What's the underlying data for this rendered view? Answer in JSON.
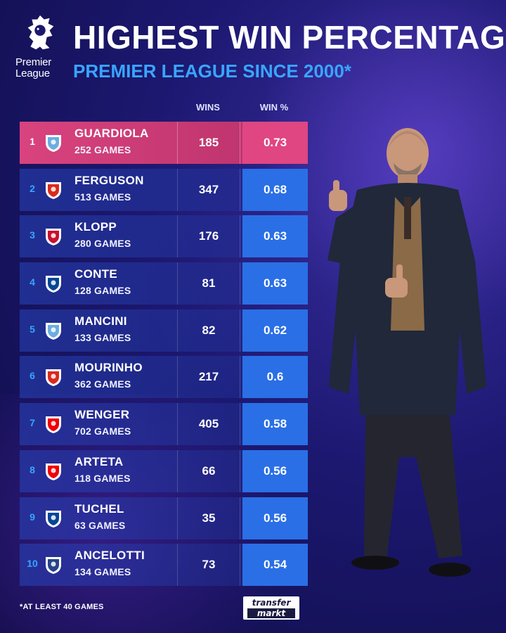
{
  "header": {
    "logo_text_line1": "Premier",
    "logo_text_line2": "League",
    "title": "HIGHEST WIN PERCENTAGE",
    "subtitle": "PREMIER LEAGUE SINCE 2000*"
  },
  "columns": {
    "wins": "WINS",
    "win_pct": "WIN %"
  },
  "rows": [
    {
      "rank": "1",
      "manager": "GUARDIOLA",
      "games": "252 GAMES",
      "wins": "185",
      "win_pct": "0.73",
      "crest": "man-city-crest",
      "crest_color": "#6caddf"
    },
    {
      "rank": "2",
      "manager": "FERGUSON",
      "games": "513 GAMES",
      "wins": "347",
      "win_pct": "0.68",
      "crest": "man-united-crest",
      "crest_color": "#da291c"
    },
    {
      "rank": "3",
      "manager": "KLOPP",
      "games": "280 GAMES",
      "wins": "176",
      "win_pct": "0.63",
      "crest": "liverpool-crest",
      "crest_color": "#c8102e"
    },
    {
      "rank": "4",
      "manager": "CONTE",
      "games": "128 GAMES",
      "wins": "81",
      "win_pct": "0.63",
      "crest": "chelsea-tottenham-crest",
      "crest_color": "#034694"
    },
    {
      "rank": "5",
      "manager": "MANCINI",
      "games": "133 GAMES",
      "wins": "82",
      "win_pct": "0.62",
      "crest": "man-city-crest",
      "crest_color": "#6caddf"
    },
    {
      "rank": "6",
      "manager": "MOURINHO",
      "games": "362 GAMES",
      "wins": "217",
      "win_pct": "0.6",
      "crest": "chelsea-united-tottenham-crest",
      "crest_color": "#da291c"
    },
    {
      "rank": "7",
      "manager": "WENGER",
      "games": "702 GAMES",
      "wins": "405",
      "win_pct": "0.58",
      "crest": "arsenal-crest",
      "crest_color": "#ef0107"
    },
    {
      "rank": "8",
      "manager": "ARTETA",
      "games": "118 GAMES",
      "wins": "66",
      "win_pct": "0.56",
      "crest": "arsenal-crest",
      "crest_color": "#ef0107"
    },
    {
      "rank": "9",
      "manager": "TUCHEL",
      "games": "63 GAMES",
      "wins": "35",
      "win_pct": "0.56",
      "crest": "chelsea-crest",
      "crest_color": "#034694"
    },
    {
      "rank": "10",
      "manager": "ANCELOTTI",
      "games": "134 GAMES",
      "wins": "73",
      "win_pct": "0.54",
      "crest": "chelsea-everton-crest",
      "crest_color": "#274488"
    }
  ],
  "footer": {
    "footnote": "*AT LEAST 40 GAMES",
    "brand_line1": "transfer",
    "brand_line2": "markt"
  },
  "colors": {
    "accent_blue": "#2a6fe6",
    "highlight_pink": "#e04682",
    "subtitle_blue": "#39a5ff"
  }
}
